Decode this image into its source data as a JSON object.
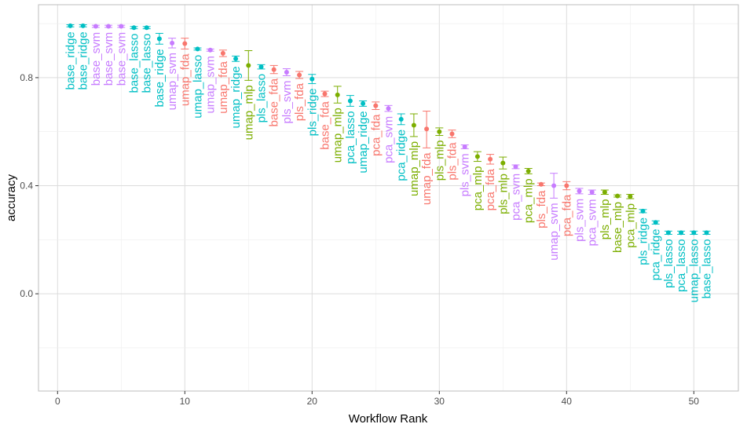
{
  "chart_data": {
    "type": "scatter",
    "title": "",
    "xlabel": "Workflow Rank",
    "ylabel": "accuracy",
    "xlim": [
      -1.5,
      53.5
    ],
    "ylim": [
      -0.36,
      1.07
    ],
    "x_ticks": [
      0,
      10,
      20,
      30,
      40,
      50
    ],
    "x_tick_labels": [
      "0",
      "10",
      "20",
      "30",
      "40",
      "50"
    ],
    "y_ticks": [
      0.0,
      0.4,
      0.8
    ],
    "y_tick_labels": [
      "0.0",
      "0.4",
      "0.8"
    ],
    "grid": true,
    "legend": "none",
    "error_bars": true,
    "series": [
      {
        "name": "fda",
        "color": "#F8766D"
      },
      {
        "name": "lasso",
        "color": "#7CAE00"
      },
      {
        "name": "mlp",
        "color": "#00BFC4"
      },
      {
        "name": "ridge",
        "color": "#C77CFF"
      },
      {
        "name": "svm",
        "color": "#E76BF3"
      }
    ],
    "points": [
      {
        "rank": 1,
        "label": "base_ridge",
        "y": 0.992,
        "lo": 0.988,
        "hi": 0.996,
        "color": "#00BFC4"
      },
      {
        "rank": 2,
        "label": "base_ridge",
        "y": 0.992,
        "lo": 0.988,
        "hi": 0.996,
        "color": "#00BFC4"
      },
      {
        "rank": 3,
        "label": "base_svm",
        "y": 0.99,
        "lo": 0.986,
        "hi": 0.994,
        "color": "#C77CFF"
      },
      {
        "rank": 4,
        "label": "base_svm",
        "y": 0.99,
        "lo": 0.986,
        "hi": 0.994,
        "color": "#C77CFF"
      },
      {
        "rank": 5,
        "label": "base_svm",
        "y": 0.99,
        "lo": 0.986,
        "hi": 0.994,
        "color": "#C77CFF"
      },
      {
        "rank": 6,
        "label": "base_lasso",
        "y": 0.985,
        "lo": 0.981,
        "hi": 0.989,
        "color": "#00BFC4"
      },
      {
        "rank": 7,
        "label": "base_lasso",
        "y": 0.985,
        "lo": 0.981,
        "hi": 0.989,
        "color": "#00BFC4"
      },
      {
        "rank": 8,
        "label": "base_ridge",
        "y": 0.944,
        "lo": 0.924,
        "hi": 0.964,
        "color": "#00BFC4"
      },
      {
        "rank": 9,
        "label": "umap_svm",
        "y": 0.928,
        "lo": 0.91,
        "hi": 0.946,
        "color": "#C77CFF"
      },
      {
        "rank": 10,
        "label": "umap_fda",
        "y": 0.926,
        "lo": 0.906,
        "hi": 0.946,
        "color": "#F8766D"
      },
      {
        "rank": 11,
        "label": "umap_lasso",
        "y": 0.906,
        "lo": 0.902,
        "hi": 0.91,
        "color": "#00BFC4"
      },
      {
        "rank": 12,
        "label": "umap_svm",
        "y": 0.902,
        "lo": 0.898,
        "hi": 0.906,
        "color": "#C77CFF"
      },
      {
        "rank": 13,
        "label": "umap_fda",
        "y": 0.89,
        "lo": 0.878,
        "hi": 0.902,
        "color": "#F8766D"
      },
      {
        "rank": 14,
        "label": "umap_ridge",
        "y": 0.87,
        "lo": 0.86,
        "hi": 0.88,
        "color": "#00BFC4"
      },
      {
        "rank": 15,
        "label": "umap_mlp",
        "y": 0.845,
        "lo": 0.79,
        "hi": 0.9,
        "color": "#7CAE00"
      },
      {
        "rank": 16,
        "label": "pls_lasso",
        "y": 0.84,
        "lo": 0.832,
        "hi": 0.848,
        "color": "#00BFC4"
      },
      {
        "rank": 17,
        "label": "base_fda",
        "y": 0.83,
        "lo": 0.815,
        "hi": 0.845,
        "color": "#F8766D"
      },
      {
        "rank": 18,
        "label": "pls_svm",
        "y": 0.82,
        "lo": 0.807,
        "hi": 0.833,
        "color": "#C77CFF"
      },
      {
        "rank": 19,
        "label": "pls_fda",
        "y": 0.81,
        "lo": 0.797,
        "hi": 0.823,
        "color": "#F8766D"
      },
      {
        "rank": 20,
        "label": "pls_ridge",
        "y": 0.795,
        "lo": 0.778,
        "hi": 0.812,
        "color": "#00BFC4"
      },
      {
        "rank": 21,
        "label": "base_fda",
        "y": 0.74,
        "lo": 0.73,
        "hi": 0.75,
        "color": "#F8766D"
      },
      {
        "rank": 22,
        "label": "umap_mlp",
        "y": 0.736,
        "lo": 0.706,
        "hi": 0.768,
        "color": "#7CAE00"
      },
      {
        "rank": 23,
        "label": "pca_lasso",
        "y": 0.714,
        "lo": 0.694,
        "hi": 0.734,
        "color": "#00BFC4"
      },
      {
        "rank": 24,
        "label": "umap_ridge",
        "y": 0.704,
        "lo": 0.694,
        "hi": 0.714,
        "color": "#00BFC4"
      },
      {
        "rank": 25,
        "label": "pca_fda",
        "y": 0.696,
        "lo": 0.682,
        "hi": 0.71,
        "color": "#F8766D"
      },
      {
        "rank": 26,
        "label": "pca_svm",
        "y": 0.686,
        "lo": 0.675,
        "hi": 0.697,
        "color": "#C77CFF"
      },
      {
        "rank": 27,
        "label": "pca_ridge",
        "y": 0.646,
        "lo": 0.626,
        "hi": 0.666,
        "color": "#00BFC4"
      },
      {
        "rank": 28,
        "label": "umap_mlp",
        "y": 0.624,
        "lo": 0.582,
        "hi": 0.666,
        "color": "#7CAE00"
      },
      {
        "rank": 29,
        "label": "umap_fda",
        "y": 0.61,
        "lo": 0.54,
        "hi": 0.676,
        "color": "#F8766D"
      },
      {
        "rank": 30,
        "label": "pls_mlp",
        "y": 0.6,
        "lo": 0.586,
        "hi": 0.614,
        "color": "#7CAE00"
      },
      {
        "rank": 31,
        "label": "pls_fda",
        "y": 0.592,
        "lo": 0.578,
        "hi": 0.606,
        "color": "#F8766D"
      },
      {
        "rank": 32,
        "label": "pls_svm",
        "y": 0.544,
        "lo": 0.537,
        "hi": 0.551,
        "color": "#C77CFF"
      },
      {
        "rank": 33,
        "label": "pca_mlp",
        "y": 0.508,
        "lo": 0.49,
        "hi": 0.526,
        "color": "#7CAE00"
      },
      {
        "rank": 34,
        "label": "pca_fda",
        "y": 0.498,
        "lo": 0.48,
        "hi": 0.516,
        "color": "#F8766D"
      },
      {
        "rank": 35,
        "label": "pls_mlp",
        "y": 0.484,
        "lo": 0.462,
        "hi": 0.506,
        "color": "#7CAE00"
      },
      {
        "rank": 36,
        "label": "pca_svm",
        "y": 0.47,
        "lo": 0.463,
        "hi": 0.477,
        "color": "#C77CFF"
      },
      {
        "rank": 37,
        "label": "pca_mlp",
        "y": 0.454,
        "lo": 0.444,
        "hi": 0.464,
        "color": "#7CAE00"
      },
      {
        "rank": 38,
        "label": "pls_fda",
        "y": 0.405,
        "lo": 0.4,
        "hi": 0.41,
        "color": "#F8766D"
      },
      {
        "rank": 39,
        "label": "umap_svm",
        "y": 0.4,
        "lo": 0.354,
        "hi": 0.446,
        "color": "#C77CFF"
      },
      {
        "rank": 40,
        "label": "pca_fda",
        "y": 0.4,
        "lo": 0.385,
        "hi": 0.415,
        "color": "#F8766D"
      },
      {
        "rank": 41,
        "label": "pls_svm",
        "y": 0.38,
        "lo": 0.37,
        "hi": 0.39,
        "color": "#C77CFF"
      },
      {
        "rank": 42,
        "label": "pca_svm",
        "y": 0.376,
        "lo": 0.368,
        "hi": 0.384,
        "color": "#C77CFF"
      },
      {
        "rank": 43,
        "label": "pls_mlp",
        "y": 0.376,
        "lo": 0.368,
        "hi": 0.384,
        "color": "#7CAE00"
      },
      {
        "rank": 44,
        "label": "base_mlp",
        "y": 0.362,
        "lo": 0.358,
        "hi": 0.366,
        "color": "#7CAE00"
      },
      {
        "rank": 45,
        "label": "pca_mlp",
        "y": 0.36,
        "lo": 0.352,
        "hi": 0.368,
        "color": "#7CAE00"
      },
      {
        "rank": 46,
        "label": "pls_ridge",
        "y": 0.306,
        "lo": 0.3,
        "hi": 0.312,
        "color": "#00BFC4"
      },
      {
        "rank": 47,
        "label": "pca_ridge",
        "y": 0.264,
        "lo": 0.258,
        "hi": 0.27,
        "color": "#00BFC4"
      },
      {
        "rank": 48,
        "label": "pls_lasso",
        "y": 0.226,
        "lo": 0.22,
        "hi": 0.232,
        "color": "#00BFC4"
      },
      {
        "rank": 49,
        "label": "pca_lasso",
        "y": 0.226,
        "lo": 0.22,
        "hi": 0.232,
        "color": "#00BFC4"
      },
      {
        "rank": 50,
        "label": "umap_lasso",
        "y": 0.226,
        "lo": 0.22,
        "hi": 0.232,
        "color": "#00BFC4"
      },
      {
        "rank": 51,
        "label": "base_lasso",
        "y": 0.226,
        "lo": 0.22,
        "hi": 0.232,
        "color": "#00BFC4"
      }
    ]
  }
}
